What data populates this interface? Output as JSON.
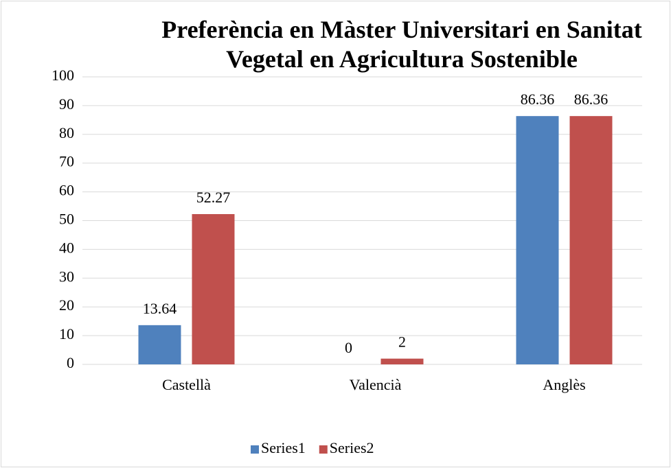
{
  "chart_data": {
    "type": "bar",
    "title": "Preferència en Màster Universitari en Sanitat Vegetal en Agricultura Sostenible",
    "categories": [
      "Castellà",
      "Valencià",
      "Anglès"
    ],
    "series": [
      {
        "name": "Series1",
        "color": "#4f81bd",
        "values": [
          13.64,
          0,
          86.36
        ]
      },
      {
        "name": "Series2",
        "color": "#c0504d",
        "values": [
          52.27,
          2,
          86.36
        ]
      }
    ],
    "ylim": [
      0,
      100
    ],
    "yticks": [
      0,
      10,
      20,
      30,
      40,
      50,
      60,
      70,
      80,
      90,
      100
    ],
    "grid": true,
    "legend": "bottom"
  }
}
